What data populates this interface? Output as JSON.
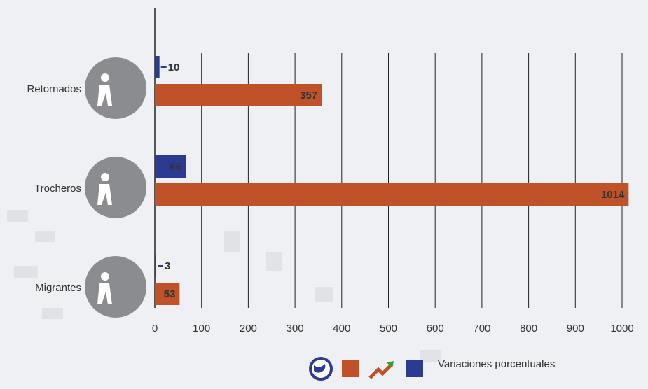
{
  "chart_data": {
    "type": "bar",
    "orientation": "horizontal",
    "categories": [
      "Retornados",
      "Trocheros",
      "Migrantes"
    ],
    "series": [
      {
        "color": "#2b3b91",
        "values": [
          10,
          66,
          3
        ]
      },
      {
        "color": "#c0522a",
        "values": [
          357,
          1014,
          53
        ]
      }
    ],
    "legend_text": "Variaciones porcentuales",
    "xlim": [
      0,
      1000
    ],
    "xticks": [
      0,
      100,
      200,
      300,
      400,
      500,
      600,
      700,
      800,
      900,
      1000
    ],
    "grid": true
  }
}
